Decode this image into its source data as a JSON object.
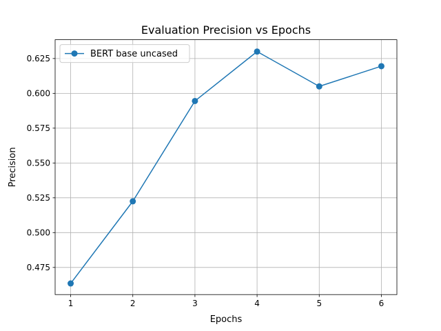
{
  "chart_data": {
    "type": "line",
    "title": "Evaluation Precision vs Epochs",
    "xlabel": "Epochs",
    "ylabel": "Precision",
    "x": [
      1,
      2,
      3,
      4,
      5,
      6
    ],
    "xticks": [
      "1",
      "2",
      "3",
      "4",
      "5",
      "6"
    ],
    "xlim": [
      0.75,
      6.25
    ],
    "ylim": [
      0.4555,
      0.6385
    ],
    "yticks": [
      0.475,
      0.5,
      0.525,
      0.55,
      0.575,
      0.6,
      0.625
    ],
    "ytick_labels": [
      "0.475",
      "0.500",
      "0.525",
      "0.550",
      "0.575",
      "0.600",
      "0.625"
    ],
    "grid": true,
    "legend_position": "upper-left",
    "series": [
      {
        "name": "BERT base uncased",
        "color": "#1f77b4",
        "marker": "circle",
        "values": [
          0.4635,
          0.5225,
          0.5945,
          0.63,
          0.605,
          0.6195
        ]
      }
    ]
  }
}
